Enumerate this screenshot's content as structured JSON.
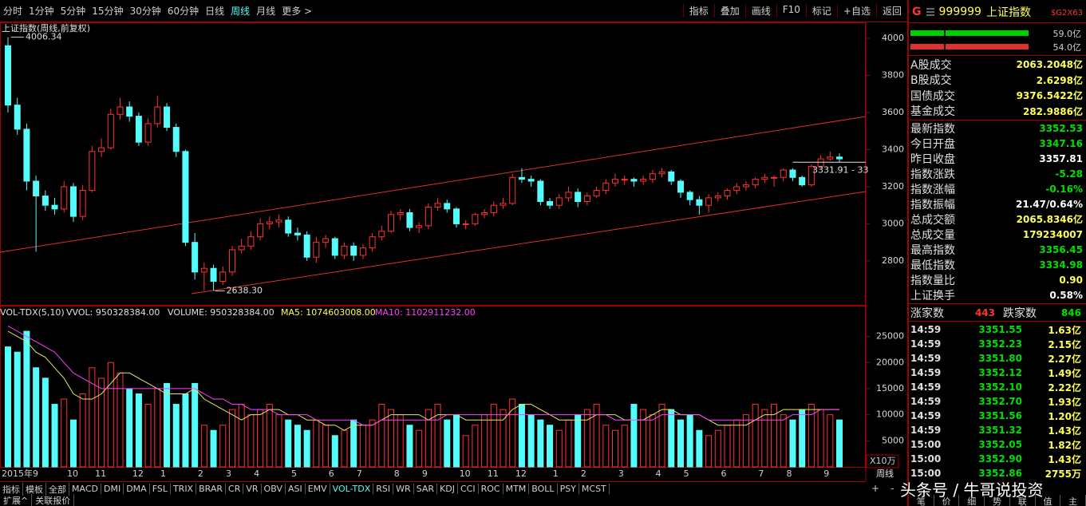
{
  "toolbar": {
    "periods": [
      "分时",
      "1分钟",
      "5分钟",
      "15分钟",
      "30分钟",
      "60分钟",
      "日线",
      "周线",
      "月线",
      "更多 >"
    ],
    "active_period": 7,
    "tools": [
      "指标",
      "叠加",
      "画线",
      "F10",
      "标记",
      "+自选",
      "返回"
    ]
  },
  "chart_data": [
    {
      "type": "candlestick",
      "title": "上证指数(周线,前复权)",
      "up_color": "#ff3232",
      "down_color": "#54fcfc",
      "open": [
        3960,
        3640,
        3510,
        3230,
        3150,
        3100,
        3080,
        3200,
        3040,
        3180,
        3390,
        3410,
        3590,
        3630,
        3580,
        3440,
        3540,
        3630,
        3520,
        3390,
        2900,
        2740,
        2760,
        2690,
        2740,
        2860,
        2880,
        2930,
        3000,
        3010,
        3020,
        2950,
        2940,
        2820,
        2900,
        2920,
        2830,
        2880,
        2830,
        2870,
        2930,
        2960,
        3050,
        3060,
        2980,
        2990,
        3090,
        3110,
        3080,
        3000,
        3000,
        3050,
        3060,
        3100,
        3110,
        3250,
        3240,
        3230,
        3120,
        3100,
        3140,
        3170,
        3120,
        3150,
        3180,
        3220,
        3240,
        3240,
        3230,
        3240,
        3270,
        3280,
        3230,
        3170,
        3130,
        3100,
        3140,
        3150,
        3180,
        3200,
        3210,
        3240,
        3250,
        3250,
        3290,
        3250,
        3210,
        3310,
        3350,
        3360
      ],
      "high": [
        4006.34,
        3680,
        3540,
        3260,
        3180,
        3140,
        3230,
        3220,
        3210,
        3420,
        3460,
        3620,
        3680,
        3660,
        3600,
        3570,
        3690,
        3650,
        3540,
        3400,
        2950,
        2790,
        2780,
        2770,
        2880,
        2920,
        2960,
        3030,
        3040,
        3050,
        3040,
        2980,
        2960,
        2930,
        2940,
        2930,
        2900,
        2900,
        2890,
        2950,
        2990,
        3070,
        3080,
        3080,
        3010,
        3110,
        3140,
        3130,
        3090,
        3020,
        3060,
        3080,
        3120,
        3140,
        3270,
        3300,
        3260,
        3240,
        3140,
        3160,
        3200,
        3190,
        3170,
        3200,
        3240,
        3270,
        3260,
        3250,
        3260,
        3290,
        3300,
        3290,
        3240,
        3180,
        3150,
        3160,
        3170,
        3190,
        3220,
        3230,
        3250,
        3270,
        3260,
        3300,
        3300,
        3260,
        3320,
        3370,
        3390,
        3380
      ],
      "low": [
        3600,
        3480,
        3180,
        2850,
        3070,
        3050,
        3060,
        3010,
        3020,
        3170,
        3360,
        3400,
        3560,
        3550,
        3420,
        3420,
        3520,
        3500,
        3360,
        2880,
        2700,
        2640,
        2638.3,
        2670,
        2720,
        2840,
        2860,
        2910,
        2970,
        2980,
        2930,
        2910,
        2800,
        2790,
        2870,
        2810,
        2810,
        2800,
        2810,
        2850,
        2910,
        2950,
        3020,
        2960,
        2950,
        2970,
        3070,
        3060,
        2980,
        2970,
        2990,
        3030,
        3040,
        3080,
        3100,
        3220,
        3200,
        3100,
        3080,
        3080,
        3120,
        3090,
        3100,
        3140,
        3160,
        3200,
        3210,
        3200,
        3210,
        3220,
        3250,
        3210,
        3140,
        3100,
        3050,
        3060,
        3120,
        3130,
        3160,
        3180,
        3190,
        3220,
        3200,
        3230,
        3230,
        3200,
        3200,
        3300,
        3340,
        3330
      ],
      "close": [
        3640,
        3510,
        3230,
        3150,
        3100,
        3080,
        3200,
        3040,
        3180,
        3390,
        3410,
        3590,
        3630,
        3580,
        3440,
        3540,
        3630,
        3520,
        3390,
        2900,
        2740,
        2760,
        2690,
        2740,
        2860,
        2880,
        2930,
        3000,
        3010,
        3020,
        2950,
        2940,
        2820,
        2900,
        2920,
        2830,
        2880,
        2830,
        2870,
        2930,
        2960,
        3050,
        3060,
        2980,
        2990,
        3090,
        3110,
        3080,
        3000,
        3000,
        3050,
        3060,
        3100,
        3110,
        3250,
        3240,
        3230,
        3120,
        3100,
        3140,
        3170,
        3120,
        3150,
        3180,
        3220,
        3240,
        3240,
        3230,
        3240,
        3270,
        3280,
        3230,
        3170,
        3130,
        3100,
        3140,
        3150,
        3180,
        3200,
        3210,
        3240,
        3250,
        3250,
        3290,
        3250,
        3210,
        3310,
        3350,
        3360,
        3350
      ],
      "annotations": [
        {
          "value": 2638.3,
          "label": "2638.30"
        }
      ],
      "price_line": {
        "value": 3331.91,
        "label": "3331.91 - 33"
      },
      "ylim": [
        2563,
        4086
      ],
      "yticks": [
        2800,
        3000,
        3200,
        3400,
        3600,
        3800,
        4000
      ]
    },
    {
      "type": "bar",
      "header": [
        {
          "text": "VOL-TDX(5,10)",
          "color": "#e0e0e0"
        },
        {
          "text": "VVOL: 950328384.00",
          "color": "#e0e0e0"
        },
        {
          "text": "VOLUME: 950328384.00",
          "color": "#e0e0e0"
        },
        {
          "text": "MA5: 1074603008.00",
          "color": "#ffff54"
        },
        {
          "text": "MA10: 1102911232.00",
          "color": "#ff40ff"
        }
      ],
      "categories": [
        "2015年9",
        null,
        null,
        null,
        null,
        null,
        null,
        "10",
        null,
        null,
        "11",
        null,
        null,
        null,
        "12",
        null,
        null,
        "1",
        null,
        null,
        null,
        "2",
        null,
        null,
        "3",
        null,
        null,
        "4",
        null,
        null,
        null,
        "5",
        null,
        null,
        null,
        "6",
        null,
        null,
        "7",
        null,
        null,
        null,
        "8",
        null,
        null,
        "9",
        null,
        null,
        null,
        "10",
        null,
        null,
        "11",
        null,
        null,
        "12",
        null,
        null,
        null,
        "1",
        null,
        null,
        "2",
        null,
        null,
        null,
        "3",
        null,
        null,
        null,
        "4",
        null,
        null,
        "5",
        null,
        null,
        null,
        "6",
        null,
        null,
        null,
        "7",
        null,
        null,
        "8",
        null,
        null,
        null,
        "9",
        null
      ],
      "series": [
        {
          "values": [
            23000,
            22000,
            26000,
            19000,
            17000,
            12000,
            13000,
            9000,
            14000,
            19000,
            17000,
            20000,
            18000,
            15000,
            14000,
            12000,
            15000,
            16000,
            12000,
            14000,
            16000,
            8000,
            7000,
            8000,
            11000,
            12000,
            10000,
            11000,
            12000,
            10000,
            9000,
            8000,
            7000,
            9000,
            8000,
            6000,
            7000,
            9000,
            8000,
            9000,
            12000,
            11000,
            10000,
            8000,
            7000,
            11000,
            12000,
            9000,
            10000,
            6000,
            8000,
            10000,
            12000,
            11000,
            13000,
            12000,
            10000,
            9000,
            8000,
            7000,
            9000,
            10000,
            11000,
            12000,
            8000,
            7000,
            8000,
            12000,
            11000,
            10000,
            12000,
            11000,
            9000,
            10000,
            7000,
            6000,
            7000,
            8000,
            9000,
            10000,
            12000,
            11000,
            12000,
            10000,
            9000,
            11000,
            12000,
            11000,
            10000,
            9000
          ]
        },
        {
          "color": "#e8e860",
          "values": [
            26000,
            25000,
            24000,
            22000,
            21000,
            19000,
            17000,
            14000,
            13000,
            13000,
            14000,
            16000,
            18000,
            18000,
            17000,
            16000,
            15000,
            14000,
            14000,
            14000,
            15000,
            13000,
            12000,
            11000,
            10000,
            9000,
            10000,
            10000,
            11000,
            11000,
            10000,
            10000,
            9000,
            9000,
            8000,
            8000,
            7000,
            8000,
            8000,
            8000,
            9000,
            10000,
            10000,
            10000,
            10000,
            9000,
            10000,
            10000,
            10000,
            9000,
            9000,
            9000,
            9000,
            9000,
            11000,
            12000,
            12000,
            11000,
            10000,
            9000,
            9000,
            9000,
            9000,
            10000,
            10000,
            10000,
            9000,
            9000,
            9000,
            10000,
            11000,
            11000,
            10000,
            10000,
            10000,
            9000,
            8000,
            8000,
            8000,
            8000,
            9000,
            10000,
            10000,
            11000,
            11000,
            11000,
            11000,
            11000,
            11000,
            11000
          ]
        },
        {
          "color": "#ff40ff",
          "values": [
            27000,
            26000,
            25000,
            24000,
            23000,
            22000,
            20000,
            18000,
            17000,
            16000,
            15000,
            15000,
            15000,
            15000,
            15000,
            15000,
            15000,
            15000,
            15000,
            15000,
            15000,
            14000,
            13000,
            13000,
            12000,
            12000,
            11000,
            11000,
            11000,
            10000,
            10000,
            10000,
            10000,
            9000,
            9000,
            9000,
            9000,
            9000,
            8000,
            8000,
            9000,
            9000,
            9000,
            9000,
            9000,
            9000,
            9000,
            10000,
            10000,
            10000,
            10000,
            10000,
            10000,
            10000,
            10000,
            10000,
            10000,
            10000,
            10000,
            10000,
            10000,
            10000,
            10000,
            10000,
            10000,
            9000,
            9000,
            9000,
            9000,
            9000,
            10000,
            10000,
            10000,
            10000,
            10000,
            9000,
            9000,
            9000,
            9000,
            9000,
            9000,
            9000,
            9000,
            9000,
            10000,
            10000,
            10000,
            11000,
            11000,
            11000
          ]
        }
      ],
      "unit_label": "X10万",
      "ylim": [
        0,
        28300
      ],
      "yticks": [
        5000,
        10000,
        15000,
        20000,
        25000
      ]
    }
  ],
  "period_label": "周线",
  "zoom_buttons": [
    "+",
    "-"
  ],
  "indicator_tabs": [
    "指标",
    "模板",
    "全部",
    "MACD",
    "DMI",
    "DMA",
    "FSL",
    "TRIX",
    "BRAR",
    "CR",
    "VR",
    "OBV",
    "ASI",
    "EMV",
    "VOL-TDX",
    "RSI",
    "WR",
    "SAR",
    "KDJ",
    "CCI",
    "ROC",
    "MTM",
    "BOLL",
    "PSY",
    "MCST"
  ],
  "active_tab": 14,
  "footer": [
    "扩展^",
    "关联报价"
  ],
  "quote_panel": {
    "prefix": "G",
    "code": "999999",
    "name": "上证指数",
    "tag": "$G2X63",
    "flow": [
      {
        "value": "59.0亿",
        "color": "#00d000"
      },
      {
        "value": "54.0亿",
        "color": "#e03030"
      }
    ],
    "turnover": [
      {
        "label": "A股成交",
        "value": "2063.2048亿"
      },
      {
        "label": "B股成交",
        "value": "2.6298亿"
      },
      {
        "label": "国债成交",
        "value": "9376.5422亿"
      },
      {
        "label": "基金成交",
        "value": "282.9886亿"
      }
    ],
    "stats": [
      {
        "label": "最新指数",
        "value": "3352.53",
        "color": "#00e000"
      },
      {
        "label": "今日开盘",
        "value": "3347.16",
        "color": "#00e000"
      },
      {
        "label": "昨日收盘",
        "value": "3357.81",
        "color": "#ffffff"
      },
      {
        "label": "指数涨跌",
        "value": "-5.28",
        "color": "#00e000"
      },
      {
        "label": "指数涨幅",
        "value": "-0.16%",
        "color": "#00e000"
      },
      {
        "label": "指数振幅",
        "value": "21.47/0.64%",
        "color": "#ffffff"
      },
      {
        "label": "总成交额",
        "value": "2065.8346亿",
        "color": "#ffff54"
      },
      {
        "label": "总成交量",
        "value": "179234007",
        "color": "#ffff54"
      },
      {
        "label": "最高指数",
        "value": "3356.45",
        "color": "#00e000"
      },
      {
        "label": "最低指数",
        "value": "3334.98",
        "color": "#00e000"
      },
      {
        "label": "指数量比",
        "value": "0.90",
        "color": "#ffff54"
      },
      {
        "label": "上证换手",
        "value": "0.58%",
        "color": "#ffffff"
      }
    ],
    "breadth": {
      "up_label": "涨家数",
      "up": 443,
      "down_label": "跌家数",
      "down": 846
    },
    "ticks": [
      [
        "14:59",
        "3351.55",
        "1.63亿"
      ],
      [
        "14:59",
        "3352.23",
        "2.15亿"
      ],
      [
        "14:59",
        "3351.80",
        "2.27亿"
      ],
      [
        "14:59",
        "3352.12",
        "1.49亿"
      ],
      [
        "14:59",
        "3352.10",
        "2.22亿"
      ],
      [
        "14:59",
        "3352.70",
        "1.93亿"
      ],
      [
        "14:59",
        "3351.56",
        "1.20亿"
      ],
      [
        "14:59",
        "3351.32",
        "1.43亿"
      ],
      [
        "15:00",
        "3352.05",
        "1.82亿"
      ],
      [
        "15:00",
        "3352.90",
        "1.43亿"
      ],
      [
        "15:00",
        "3352.86",
        "2755万"
      ]
    ],
    "tabs": [
      "笔",
      "价",
      "细",
      "势",
      "联",
      "值",
      "主"
    ]
  },
  "watermark": "头条号 / 牛哥说投资"
}
